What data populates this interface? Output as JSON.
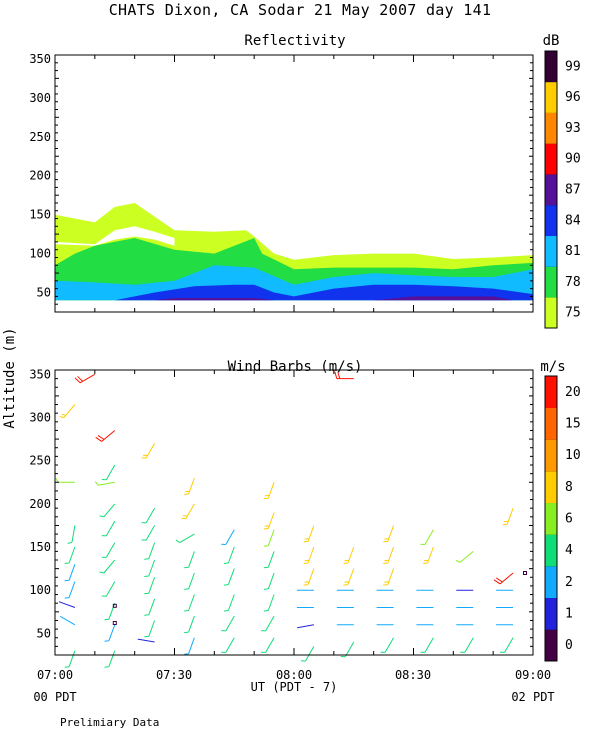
{
  "title": "CHATS Dixon, CA  Sodar  21 May 2007  day 141",
  "footnote": "Prelimiary Data",
  "y_axis_label": "Altitude (m)",
  "x_axis_label": "UT  (PDT - 7)",
  "x_ticks": [
    "07:00",
    "07:30",
    "08:00",
    "08:30",
    "09:00"
  ],
  "x_sublabels": {
    "left": "00 PDT",
    "right": "02 PDT"
  },
  "chart_data": [
    {
      "type": "area",
      "title": "Reflectivity",
      "colorbar_unit": "dB",
      "colorbar_ticks": [
        "75",
        "78",
        "81",
        "84",
        "87",
        "90",
        "93",
        "96",
        "99"
      ],
      "colorbar_colors": [
        "#ccff22",
        "#22dd44",
        "#11bbff",
        "#1133ee",
        "#551199",
        "#ff0000",
        "#ff8800",
        "#ffcc00",
        "#330033"
      ],
      "ylim": [
        25,
        355
      ],
      "y_ticks": [
        50,
        100,
        150,
        200,
        250,
        300,
        350
      ],
      "xlim_minutes": [
        0,
        120
      ],
      "layers": [
        {
          "name": "75 dB",
          "color": "#ccff22",
          "x": [
            0,
            10,
            15,
            20,
            30,
            40,
            48,
            50,
            55,
            60,
            70,
            80,
            90,
            100,
            110,
            120
          ],
          "top": [
            150,
            140,
            160,
            165,
            130,
            128,
            130,
            122,
            100,
            92,
            98,
            100,
            100,
            93,
            95,
            98
          ],
          "bottom": [
            40,
            40,
            40,
            40,
            40,
            40,
            40,
            40,
            40,
            40,
            40,
            40,
            40,
            40,
            40,
            40
          ]
        },
        {
          "name": "78 dB",
          "color": "#22dd44",
          "x": [
            0,
            5,
            10,
            20,
            30,
            40,
            50,
            52,
            60,
            70,
            80,
            90,
            100,
            110,
            120
          ],
          "top": [
            85,
            100,
            110,
            120,
            105,
            100,
            120,
            100,
            80,
            82,
            82,
            82,
            80,
            85,
            88
          ],
          "bottom": [
            40,
            40,
            40,
            40,
            40,
            40,
            40,
            40,
            40,
            40,
            40,
            40,
            40,
            40,
            40
          ]
        },
        {
          "name": "81 dB",
          "color": "#11bbff",
          "x": [
            0,
            10,
            20,
            30,
            40,
            50,
            60,
            70,
            80,
            90,
            100,
            110,
            120
          ],
          "top": [
            65,
            63,
            60,
            65,
            85,
            82,
            60,
            70,
            75,
            72,
            70,
            70,
            80
          ],
          "bottom": [
            40,
            40,
            40,
            40,
            40,
            40,
            40,
            40,
            40,
            40,
            40,
            40,
            40
          ]
        },
        {
          "name": "84 dB",
          "color": "#1133ee",
          "x": [
            15,
            25,
            35,
            45,
            50,
            55,
            60,
            70,
            80,
            90,
            100,
            110,
            120
          ],
          "top": [
            40,
            50,
            58,
            60,
            60,
            50,
            45,
            55,
            60,
            60,
            58,
            55,
            48
          ],
          "bottom": [
            40,
            40,
            40,
            40,
            40,
            40,
            40,
            40,
            40,
            40,
            40,
            40,
            40
          ]
        },
        {
          "name": "87 dB",
          "color": "#551199",
          "x": [
            25,
            30,
            50,
            55,
            80,
            90,
            110,
            115
          ],
          "top": [
            40,
            43,
            43,
            40,
            40,
            45,
            45,
            40
          ],
          "bottom": [
            40,
            40,
            40,
            40,
            40,
            40,
            40,
            40
          ]
        },
        {
          "name": "hollow",
          "color": "#ffffff",
          "x": [
            0,
            10,
            15,
            20,
            25,
            30
          ],
          "top": [
            115,
            112,
            130,
            135,
            128,
            120
          ],
          "bottom": [
            112,
            110,
            118,
            122,
            118,
            110
          ]
        }
      ]
    },
    {
      "type": "scatter",
      "title": "Wind Barbs (m/s)",
      "colorbar_unit": "m/s",
      "colorbar_ticks": [
        "0",
        "1",
        "2",
        "4",
        "6",
        "8",
        "10",
        "15",
        "20"
      ],
      "colorbar_colors": [
        "#440044",
        "#2222dd",
        "#11aaff",
        "#11dd77",
        "#88ee22",
        "#ffcc00",
        "#ff9900",
        "#ff6600",
        "#ff1100"
      ],
      "ylim": [
        25,
        355
      ],
      "y_ticks": [
        50,
        100,
        150,
        200,
        250,
        300,
        350
      ],
      "xlim_minutes": [
        0,
        120
      ],
      "barb_times_minutes": [
        5,
        15,
        25,
        35,
        45,
        55,
        65,
        75,
        85,
        95,
        105,
        115
      ],
      "barbs": [
        {
          "t": 5,
          "alt": 30,
          "speed": 4,
          "dir": 200
        },
        {
          "t": 5,
          "alt": 60,
          "speed": 2,
          "dir": 300
        },
        {
          "t": 5,
          "alt": 80,
          "speed": 1,
          "dir": 290
        },
        {
          "t": 5,
          "alt": 110,
          "speed": 3,
          "dir": 200
        },
        {
          "t": 5,
          "alt": 130,
          "speed": 3,
          "dir": 200
        },
        {
          "t": 5,
          "alt": 150,
          "speed": 4,
          "dir": 200
        },
        {
          "t": 5,
          "alt": 175,
          "speed": 5,
          "dir": 190
        },
        {
          "t": 5,
          "alt": 225,
          "speed": 6,
          "dir": 270
        },
        {
          "t": 5,
          "alt": 315,
          "speed": 9,
          "dir": 220
        },
        {
          "t": 10,
          "alt": 350,
          "speed": 21,
          "dir": 240
        },
        {
          "t": 15,
          "alt": 30,
          "speed": 4,
          "dir": 200
        },
        {
          "t": 15,
          "alt": 60,
          "speed": 3,
          "dir": 200
        },
        {
          "t": 15,
          "alt": 85,
          "speed": 5,
          "dir": 200
        },
        {
          "t": 15,
          "alt": 110,
          "speed": 5,
          "dir": 210
        },
        {
          "t": 15,
          "alt": 135,
          "speed": 5,
          "dir": 220
        },
        {
          "t": 15,
          "alt": 155,
          "speed": 5,
          "dir": 210
        },
        {
          "t": 15,
          "alt": 180,
          "speed": 5,
          "dir": 210
        },
        {
          "t": 15,
          "alt": 200,
          "speed": 5,
          "dir": 220
        },
        {
          "t": 15,
          "alt": 225,
          "speed": 6,
          "dir": 260
        },
        {
          "t": 15,
          "alt": 245,
          "speed": 5,
          "dir": 210
        },
        {
          "t": 15,
          "alt": 285,
          "speed": 20,
          "dir": 230
        },
        {
          "t": 25,
          "alt": 40,
          "speed": 1,
          "dir": 280
        },
        {
          "t": 25,
          "alt": 65,
          "speed": 4,
          "dir": 200
        },
        {
          "t": 25,
          "alt": 90,
          "speed": 4,
          "dir": 200
        },
        {
          "t": 25,
          "alt": 115,
          "speed": 5,
          "dir": 200
        },
        {
          "t": 25,
          "alt": 135,
          "speed": 5,
          "dir": 200
        },
        {
          "t": 25,
          "alt": 155,
          "speed": 5,
          "dir": 200
        },
        {
          "t": 25,
          "alt": 175,
          "speed": 5,
          "dir": 210
        },
        {
          "t": 25,
          "alt": 195,
          "speed": 5,
          "dir": 210
        },
        {
          "t": 25,
          "alt": 270,
          "speed": 9,
          "dir": 210
        },
        {
          "t": 35,
          "alt": 45,
          "speed": 3,
          "dir": 200
        },
        {
          "t": 35,
          "alt": 70,
          "speed": 4,
          "dir": 200
        },
        {
          "t": 35,
          "alt": 95,
          "speed": 5,
          "dir": 200
        },
        {
          "t": 35,
          "alt": 120,
          "speed": 5,
          "dir": 200
        },
        {
          "t": 35,
          "alt": 145,
          "speed": 5,
          "dir": 200
        },
        {
          "t": 35,
          "alt": 165,
          "speed": 5,
          "dir": 240
        },
        {
          "t": 35,
          "alt": 200,
          "speed": 8,
          "dir": 210
        },
        {
          "t": 35,
          "alt": 230,
          "speed": 8,
          "dir": 200
        },
        {
          "t": 45,
          "alt": 45,
          "speed": 4,
          "dir": 210
        },
        {
          "t": 45,
          "alt": 70,
          "speed": 4,
          "dir": 210
        },
        {
          "t": 45,
          "alt": 95,
          "speed": 5,
          "dir": 200
        },
        {
          "t": 45,
          "alt": 125,
          "speed": 5,
          "dir": 200
        },
        {
          "t": 45,
          "alt": 150,
          "speed": 5,
          "dir": 200
        },
        {
          "t": 45,
          "alt": 170,
          "speed": 3,
          "dir": 210
        },
        {
          "t": 55,
          "alt": 45,
          "speed": 4,
          "dir": 210
        },
        {
          "t": 55,
          "alt": 70,
          "speed": 4,
          "dir": 210
        },
        {
          "t": 55,
          "alt": 95,
          "speed": 5,
          "dir": 200
        },
        {
          "t": 55,
          "alt": 120,
          "speed": 5,
          "dir": 200
        },
        {
          "t": 55,
          "alt": 145,
          "speed": 5,
          "dir": 200
        },
        {
          "t": 55,
          "alt": 170,
          "speed": 6,
          "dir": 200
        },
        {
          "t": 55,
          "alt": 190,
          "speed": 8,
          "dir": 200
        },
        {
          "t": 55,
          "alt": 225,
          "speed": 8,
          "dir": 200
        },
        {
          "t": 65,
          "alt": 35,
          "speed": 5,
          "dir": 210
        },
        {
          "t": 65,
          "alt": 60,
          "speed": 1,
          "dir": 260
        },
        {
          "t": 65,
          "alt": 80,
          "speed": 2,
          "dir": 270
        },
        {
          "t": 65,
          "alt": 100,
          "speed": 2,
          "dir": 270
        },
        {
          "t": 65,
          "alt": 125,
          "speed": 8,
          "dir": 200
        },
        {
          "t": 65,
          "alt": 150,
          "speed": 8,
          "dir": 200
        },
        {
          "t": 65,
          "alt": 175,
          "speed": 8,
          "dir": 200
        },
        {
          "t": 75,
          "alt": 40,
          "speed": 5,
          "dir": 210
        },
        {
          "t": 75,
          "alt": 60,
          "speed": 2,
          "dir": 270
        },
        {
          "t": 75,
          "alt": 80,
          "speed": 2,
          "dir": 270
        },
        {
          "t": 75,
          "alt": 100,
          "speed": 2,
          "dir": 270
        },
        {
          "t": 75,
          "alt": 125,
          "speed": 8,
          "dir": 200
        },
        {
          "t": 75,
          "alt": 150,
          "speed": 8,
          "dir": 200
        },
        {
          "t": 75,
          "alt": 345,
          "speed": 20,
          "dir": 270
        },
        {
          "t": 85,
          "alt": 45,
          "speed": 5,
          "dir": 210
        },
        {
          "t": 85,
          "alt": 60,
          "speed": 2,
          "dir": 270
        },
        {
          "t": 85,
          "alt": 80,
          "speed": 2,
          "dir": 270
        },
        {
          "t": 85,
          "alt": 100,
          "speed": 2,
          "dir": 270
        },
        {
          "t": 85,
          "alt": 125,
          "speed": 8,
          "dir": 200
        },
        {
          "t": 85,
          "alt": 150,
          "speed": 8,
          "dir": 200
        },
        {
          "t": 85,
          "alt": 175,
          "speed": 8,
          "dir": 200
        },
        {
          "t": 95,
          "alt": 45,
          "speed": 5,
          "dir": 210
        },
        {
          "t": 95,
          "alt": 60,
          "speed": 2,
          "dir": 270
        },
        {
          "t": 95,
          "alt": 80,
          "speed": 2,
          "dir": 270
        },
        {
          "t": 95,
          "alt": 100,
          "speed": 2,
          "dir": 270
        },
        {
          "t": 95,
          "alt": 150,
          "speed": 8,
          "dir": 200
        },
        {
          "t": 95,
          "alt": 170,
          "speed": 6,
          "dir": 210
        },
        {
          "t": 105,
          "alt": 45,
          "speed": 5,
          "dir": 210
        },
        {
          "t": 105,
          "alt": 60,
          "speed": 2,
          "dir": 270
        },
        {
          "t": 105,
          "alt": 80,
          "speed": 2,
          "dir": 270
        },
        {
          "t": 105,
          "alt": 100,
          "speed": 1,
          "dir": 270
        },
        {
          "t": 105,
          "alt": 145,
          "speed": 6,
          "dir": 230
        },
        {
          "t": 115,
          "alt": 45,
          "speed": 5,
          "dir": 210
        },
        {
          "t": 115,
          "alt": 60,
          "speed": 2,
          "dir": 270
        },
        {
          "t": 115,
          "alt": 80,
          "speed": 2,
          "dir": 270
        },
        {
          "t": 115,
          "alt": 100,
          "speed": 2,
          "dir": 270
        },
        {
          "t": 115,
          "alt": 120,
          "speed": 20,
          "dir": 230
        },
        {
          "t": 115,
          "alt": 195,
          "speed": 8,
          "dir": 200
        }
      ],
      "calm_markers": [
        {
          "t": 15,
          "alt": 62,
          "speed": 0
        },
        {
          "t": 15,
          "alt": 82,
          "speed": 0
        },
        {
          "t": 118,
          "alt": 120,
          "speed": 0
        }
      ]
    }
  ]
}
